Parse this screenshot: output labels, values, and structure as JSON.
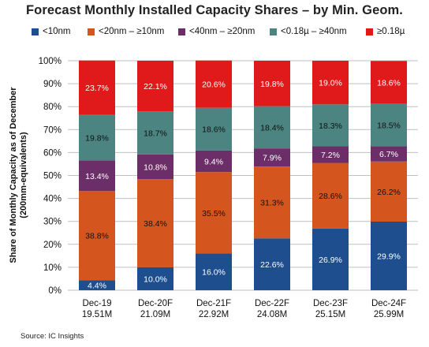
{
  "chart_data": {
    "type": "bar",
    "stacked": true,
    "title": "Forecast Monthly Installed Capacity Shares – by Min. Geom.",
    "ylabel_line1": "Share of Monthly Capacity as of December",
    "ylabel_line2": "(200mm-equivalents)",
    "ylim": [
      0,
      100
    ],
    "yticks": [
      "0%",
      "10%",
      "20%",
      "30%",
      "40%",
      "50%",
      "60%",
      "70%",
      "80%",
      "90%",
      "100%"
    ],
    "categories": [
      "Dec-19",
      "Dec-20F",
      "Dec-21F",
      "Dec-22F",
      "Dec-23F",
      "Dec-24F"
    ],
    "sublabels": [
      "19.51M",
      "21.09M",
      "22.92M",
      "24.08M",
      "25.15M",
      "25.99M"
    ],
    "legend_position": "top",
    "series": [
      {
        "name": "<10nm",
        "color": "#1f4e8f",
        "labels": [
          "4.4%",
          "10.0%",
          "16.0%",
          "22.6%",
          "26.9%",
          "29.9%"
        ],
        "values": [
          4.4,
          10.0,
          16.0,
          22.6,
          26.9,
          29.9
        ]
      },
      {
        "name": "<20nm – ≥10nm",
        "color": "#d4561e",
        "labels": [
          "38.8%",
          "38.4%",
          "35.5%",
          "31.3%",
          "28.6%",
          "26.2%"
        ],
        "values": [
          38.8,
          38.4,
          35.5,
          31.3,
          28.6,
          26.2
        ]
      },
      {
        "name": "<40nm – ≥20nm",
        "color": "#6b2e68",
        "labels": [
          "13.4%",
          "10.8%",
          "9.4%",
          "7.9%",
          "7.2%",
          "6.7%"
        ],
        "values": [
          13.4,
          10.8,
          9.4,
          7.9,
          7.2,
          6.7
        ]
      },
      {
        "name": "<0.18µ – ≥40nm",
        "color": "#4b8481",
        "labels": [
          "19.8%",
          "18.7%",
          "18.6%",
          "18.4%",
          "18.3%",
          "18.5%"
        ],
        "values": [
          19.8,
          18.7,
          18.6,
          18.4,
          18.3,
          18.5
        ]
      },
      {
        "name": "≥0.18µ",
        "color": "#e01a1a",
        "labels": [
          "23.7%",
          "22.1%",
          "20.6%",
          "19.8%",
          "19.0%",
          "18.6%"
        ],
        "values": [
          23.7,
          22.1,
          20.6,
          19.8,
          19.0,
          18.6
        ]
      }
    ],
    "label_colors": [
      "#ffffff",
      "#111111",
      "#ffffff",
      "#111111",
      "#ffffff"
    ],
    "gridlines": true
  },
  "source": "Source:  IC Insights"
}
